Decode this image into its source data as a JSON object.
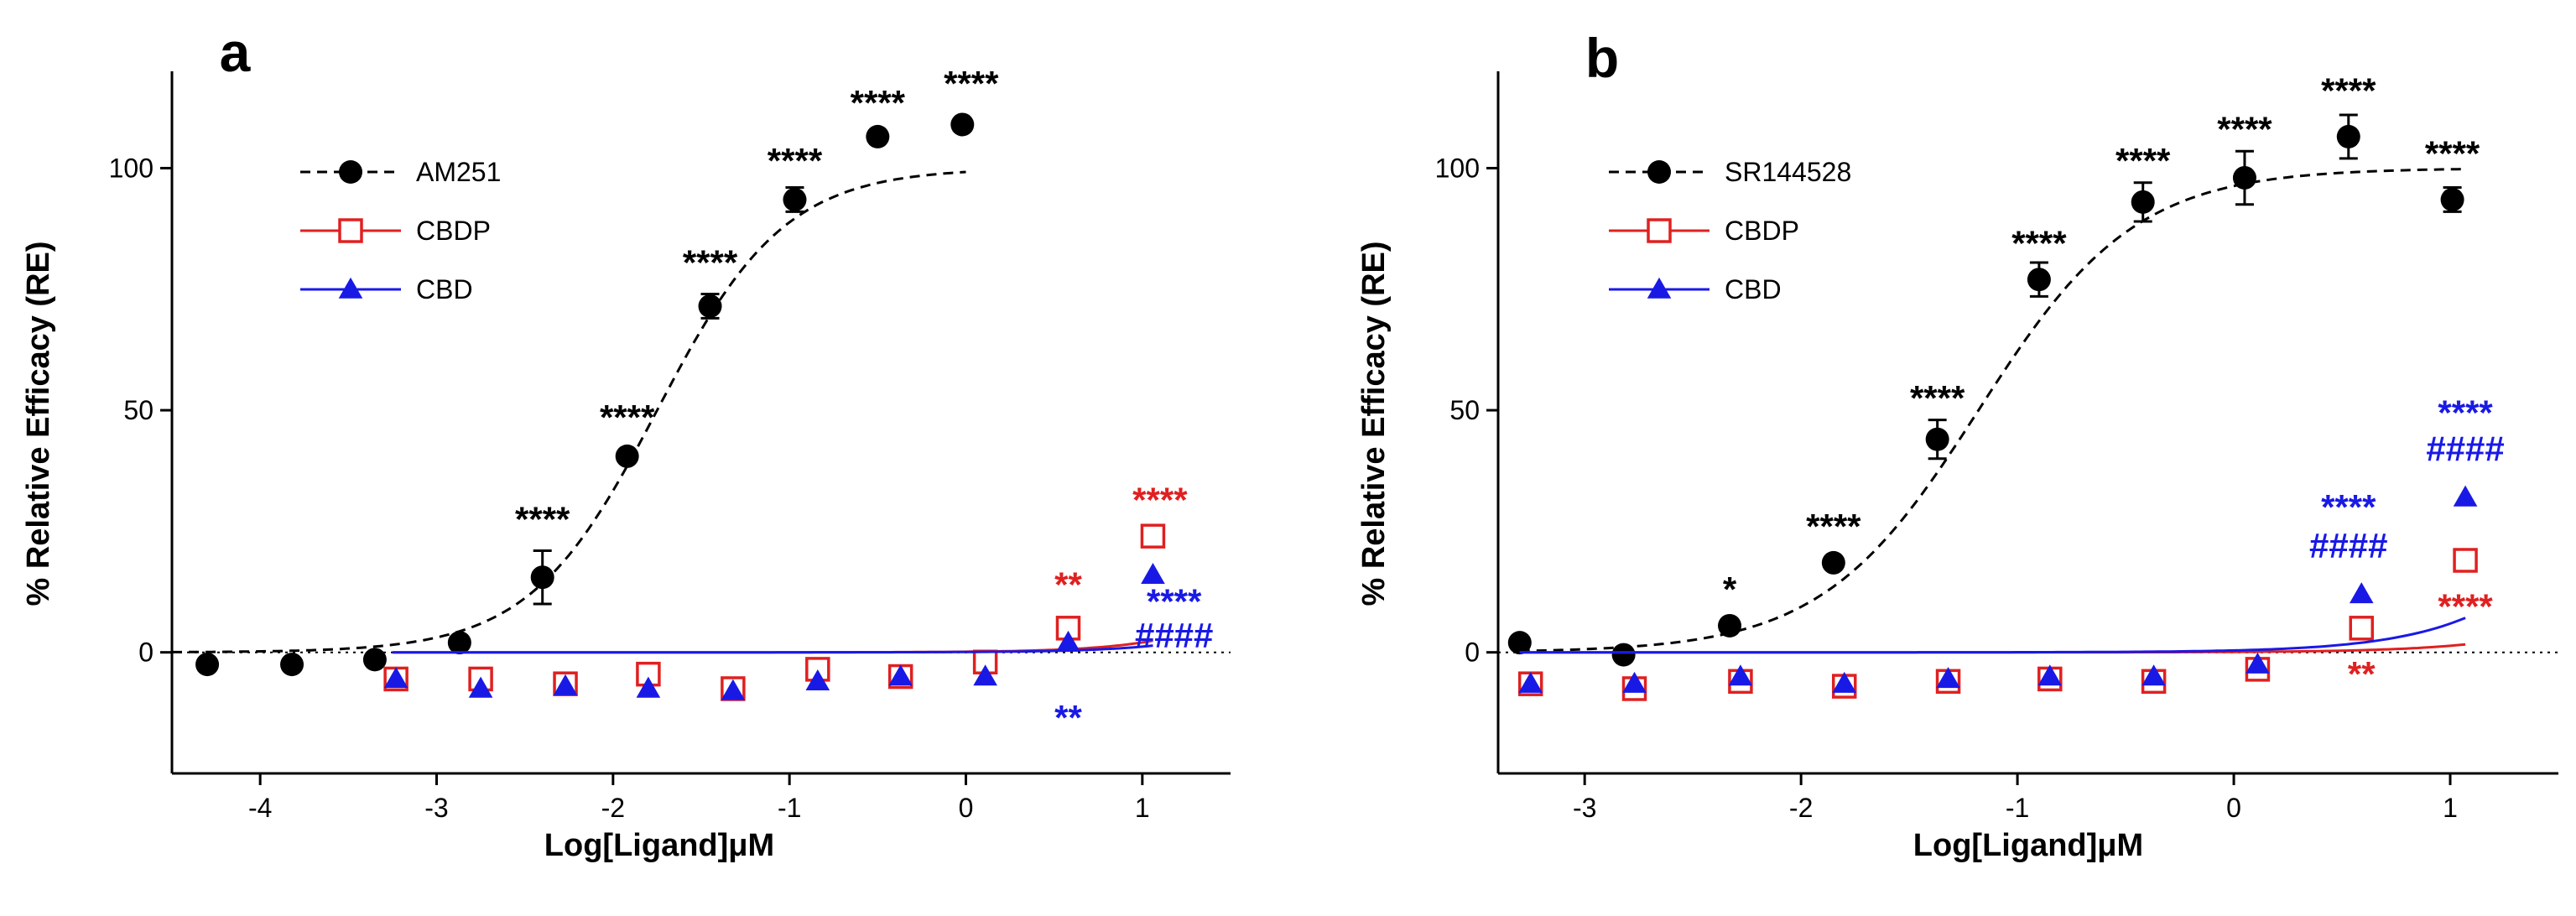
{
  "chart_data": [
    {
      "type": "scatter",
      "panel": "a",
      "xlabel": "Log[Ligand]μM",
      "ylabel": "% Relative Efficacy (RE)",
      "xlim": [
        -4.5,
        1.5
      ],
      "ylim": [
        -25,
        120
      ],
      "xticks": [
        -4,
        -3,
        -2,
        -1,
        0,
        1
      ],
      "yticks": [
        0,
        50,
        100
      ],
      "baseline": 0,
      "legend_position": "top-left",
      "series": [
        {
          "name": "AM251",
          "color": "#000000",
          "marker": "circle",
          "line": "dashed",
          "x": [
            -4.3,
            -3.82,
            -3.35,
            -2.87,
            -2.4,
            -1.92,
            -1.45,
            -0.97,
            -0.5,
            -0.02
          ],
          "y": [
            -2.5,
            -2.5,
            -1.5,
            2,
            15.5,
            40.5,
            71.5,
            93.5,
            106.5,
            109
          ],
          "err": [
            0,
            0,
            0,
            0,
            5.5,
            0,
            2.5,
            2.5,
            0,
            0
          ],
          "fit": {
            "bottom": 0,
            "top": 100,
            "logec50": -1.75,
            "hill": 1.2,
            "x_start": -4.5,
            "x_end": 0
          }
        },
        {
          "name": "CBDP",
          "color": "#e02020",
          "marker": "square-open",
          "line": "solid",
          "x": [
            -3.23,
            -2.75,
            -2.27,
            -1.8,
            -1.32,
            -0.84,
            -0.37,
            0.11,
            0.58,
            1.06
          ],
          "y": [
            -5.5,
            -5.5,
            -6.5,
            -4.5,
            -7.5,
            -3.5,
            -5,
            -2,
            5,
            24
          ],
          "err": [
            0,
            0,
            0,
            0,
            0,
            0,
            0,
            0,
            0,
            0
          ],
          "fit": {
            "bottom": 0,
            "top": 100,
            "logec50": 2.4,
            "hill": 1.2,
            "x_start": -3.25,
            "x_end": 1.06
          }
        },
        {
          "name": "CBD",
          "color": "#1919e6",
          "marker": "triangle",
          "line": "solid",
          "x": [
            -3.23,
            -2.75,
            -2.27,
            -1.8,
            -1.32,
            -0.84,
            -0.37,
            0.11,
            0.58,
            1.06
          ],
          "y": [
            -5.5,
            -7.5,
            -7,
            -7.5,
            -8,
            -6,
            -5,
            -5,
            2,
            16
          ],
          "err": [
            0,
            0,
            0,
            0,
            0,
            0,
            0,
            0,
            0,
            0
          ],
          "fit": {
            "bottom": 0,
            "top": 100,
            "logec50": 2.6,
            "hill": 1.2,
            "x_start": -3.25,
            "x_end": 1.06
          }
        }
      ],
      "annotations": [
        {
          "text": "****",
          "x": -2.4,
          "y": 25,
          "color": "#000000"
        },
        {
          "text": "****",
          "x": -1.92,
          "y": 46,
          "color": "#000000"
        },
        {
          "text": "****",
          "x": -1.45,
          "y": 78,
          "color": "#000000"
        },
        {
          "text": "****",
          "x": -0.97,
          "y": 99,
          "color": "#000000"
        },
        {
          "text": "****",
          "x": -0.5,
          "y": 111,
          "color": "#000000"
        },
        {
          "text": "****",
          "x": 0.03,
          "y": 115,
          "color": "#000000"
        },
        {
          "text": "****",
          "x": 1.1,
          "y": 29,
          "color": "#e02020"
        },
        {
          "text": "**",
          "x": 0.58,
          "y": 11.5,
          "color": "#e02020"
        },
        {
          "text": "****",
          "x": 1.18,
          "y": 8,
          "color": "#1919e6"
        },
        {
          "text": "####",
          "x": 1.18,
          "y": 1,
          "color": "#1919e6"
        },
        {
          "text": "**",
          "x": 0.58,
          "y": -16,
          "color": "#1919e6"
        }
      ]
    },
    {
      "type": "scatter",
      "panel": "b",
      "xlabel": "Log[Ligand]μM",
      "ylabel": "% Relative Efficacy (RE)",
      "xlim": [
        -3.4,
        1.5
      ],
      "ylim": [
        -25,
        120
      ],
      "xticks": [
        -3,
        -2,
        -1,
        0,
        1
      ],
      "yticks": [
        0,
        50,
        100
      ],
      "baseline": 0,
      "legend_position": "top-left",
      "series": [
        {
          "name": "SR144528",
          "color": "#000000",
          "marker": "circle",
          "line": "dashed",
          "x": [
            -3.3,
            -2.82,
            -2.33,
            -1.85,
            -1.37,
            -0.9,
            -0.42,
            0.05,
            0.53,
            1.01
          ],
          "y": [
            2,
            -0.5,
            5.5,
            18.5,
            44,
            77,
            93,
            98,
            106.5,
            93.5
          ],
          "err": [
            0,
            0,
            0,
            0,
            4,
            3.5,
            4,
            5.5,
            4.5,
            2.5
          ],
          "fit": {
            "bottom": 0,
            "top": 100,
            "logec50": -1.18,
            "hill": 1.2,
            "x_start": -3.3,
            "x_end": 1.06
          }
        },
        {
          "name": "CBDP",
          "color": "#e02020",
          "marker": "square-open",
          "line": "solid",
          "x": [
            -3.25,
            -2.77,
            -2.28,
            -1.8,
            -1.32,
            -0.85,
            -0.37,
            0.11,
            0.59,
            1.07
          ],
          "y": [
            -6.5,
            -7.5,
            -6,
            -7,
            -6,
            -5.5,
            -6,
            -3.5,
            5,
            19
          ],
          "err": [
            0,
            0,
            0,
            0,
            0,
            0,
            0,
            0,
            0,
            0
          ],
          "fit": {
            "bottom": 0,
            "top": 100,
            "logec50": 2.55,
            "hill": 1.2,
            "x_start": -3.3,
            "x_end": 1.07
          }
        },
        {
          "name": "CBD",
          "color": "#1919e6",
          "marker": "triangle",
          "line": "solid",
          "x": [
            -3.25,
            -2.77,
            -2.28,
            -1.8,
            -1.32,
            -0.85,
            -0.37,
            0.11,
            0.59,
            1.07
          ],
          "y": [
            -6.5,
            -6.5,
            -5,
            -6.5,
            -5.5,
            -5,
            -5,
            -2.5,
            12,
            32
          ],
          "err": [
            0,
            0,
            0,
            0,
            0,
            0,
            0,
            0,
            0,
            0
          ],
          "fit": {
            "bottom": 0,
            "top": 100,
            "logec50": 2.0,
            "hill": 1.2,
            "x_start": -3.3,
            "x_end": 1.07
          }
        }
      ],
      "annotations": [
        {
          "text": "*",
          "x": -2.33,
          "y": 10.5,
          "color": "#000000"
        },
        {
          "text": "****",
          "x": -1.85,
          "y": 23.5,
          "color": "#000000"
        },
        {
          "text": "****",
          "x": -1.37,
          "y": 50,
          "color": "#000000"
        },
        {
          "text": "****",
          "x": -0.9,
          "y": 82,
          "color": "#000000"
        },
        {
          "text": "****",
          "x": -0.42,
          "y": 99,
          "color": "#000000"
        },
        {
          "text": "****",
          "x": 0.05,
          "y": 105.5,
          "color": "#000000"
        },
        {
          "text": "****",
          "x": 0.53,
          "y": 113.5,
          "color": "#000000"
        },
        {
          "text": "****",
          "x": 1.01,
          "y": 100.5,
          "color": "#000000"
        },
        {
          "text": "****",
          "x": 1.07,
          "y": 47,
          "color": "#1919e6"
        },
        {
          "text": "####",
          "x": 1.07,
          "y": 39.5,
          "color": "#1919e6"
        },
        {
          "text": "****",
          "x": 0.53,
          "y": 27.5,
          "color": "#1919e6"
        },
        {
          "text": "####",
          "x": 0.53,
          "y": 19.5,
          "color": "#1919e6"
        },
        {
          "text": "****",
          "x": 1.07,
          "y": 7,
          "color": "#e02020"
        },
        {
          "text": "**",
          "x": 0.59,
          "y": -7,
          "color": "#e02020"
        }
      ]
    }
  ]
}
